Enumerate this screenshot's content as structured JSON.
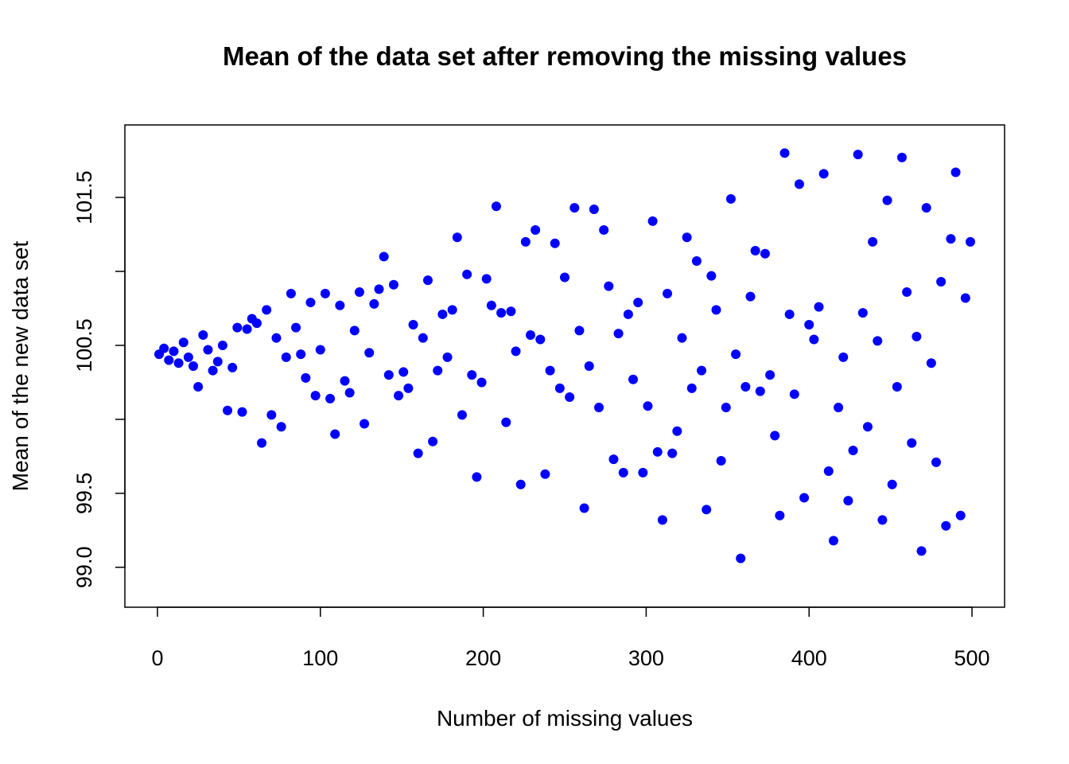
{
  "chart_data": {
    "type": "scatter",
    "title": "Mean of the data set after removing the missing values",
    "x_label": "Number of missing values",
    "y_label": "Mean of the new data set",
    "color": "#0000ff",
    "xlim": [
      -20,
      520
    ],
    "xticks": [
      0,
      100,
      200,
      300,
      400,
      500
    ],
    "ylim": [
      98.73,
      101.99
    ],
    "yticks": [
      {
        "value": 99,
        "label": "99.0"
      },
      {
        "value": 99.5,
        "label": "99.5"
      },
      {
        "value": 100,
        "label": null
      },
      {
        "value": 100.5,
        "label": "100.5"
      },
      {
        "value": 101,
        "label": null
      },
      {
        "value": 101.5,
        "label": "101.5"
      }
    ],
    "x": [
      1,
      4,
      7,
      10,
      13,
      16,
      19,
      22,
      25,
      28,
      31,
      34,
      37,
      40,
      43,
      46,
      49,
      52,
      55,
      58,
      61,
      64,
      67,
      70,
      73,
      76,
      79,
      82,
      85,
      88,
      91,
      94,
      97,
      100,
      103,
      106,
      109,
      112,
      115,
      118,
      121,
      124,
      127,
      130,
      133,
      136,
      139,
      142,
      145,
      148,
      151,
      154,
      157,
      160,
      163,
      166,
      169,
      172,
      175,
      178,
      181,
      184,
      187,
      190,
      193,
      196,
      199,
      202,
      205,
      208,
      211,
      214,
      217,
      220,
      223,
      226,
      229,
      232,
      235,
      238,
      241,
      244,
      247,
      250,
      253,
      256,
      259,
      262,
      265,
      268,
      271,
      274,
      277,
      280,
      283,
      286,
      289,
      292,
      295,
      298,
      301,
      304,
      307,
      310,
      313,
      316,
      319,
      322,
      325,
      328,
      331,
      334,
      337,
      340,
      343,
      346,
      349,
      352,
      355,
      358,
      361,
      364,
      367,
      370,
      373,
      376,
      379,
      382,
      385,
      388,
      391,
      394,
      397,
      400,
      403,
      406,
      409,
      412,
      415,
      418,
      421,
      424,
      427,
      430,
      433,
      436,
      439,
      442,
      445,
      448,
      451,
      454,
      457,
      460,
      463,
      466,
      469,
      472,
      475,
      478,
      481,
      484,
      487,
      490,
      493,
      496,
      499
    ],
    "y": [
      100.44,
      100.48,
      100.4,
      100.46,
      100.38,
      100.52,
      100.42,
      100.36,
      100.22,
      100.57,
      100.47,
      100.33,
      100.39,
      100.5,
      100.06,
      100.35,
      100.62,
      100.05,
      100.61,
      100.68,
      100.65,
      99.84,
      100.74,
      100.03,
      100.55,
      99.95,
      100.42,
      100.85,
      100.62,
      100.44,
      100.28,
      100.79,
      100.16,
      100.47,
      100.85,
      100.14,
      99.9,
      100.77,
      100.26,
      100.18,
      100.6,
      100.86,
      99.97,
      100.45,
      100.78,
      100.88,
      101.1,
      100.3,
      100.91,
      100.16,
      100.32,
      100.21,
      100.64,
      99.77,
      100.55,
      100.94,
      99.85,
      100.33,
      100.71,
      100.42,
      100.74,
      101.23,
      100.03,
      100.98,
      100.3,
      99.61,
      100.25,
      100.95,
      100.77,
      101.44,
      100.72,
      99.98,
      100.73,
      100.46,
      99.56,
      101.2,
      100.57,
      101.28,
      100.54,
      99.63,
      100.33,
      101.19,
      100.21,
      100.96,
      100.15,
      101.43,
      100.6,
      99.4,
      100.36,
      101.42,
      100.08,
      101.28,
      100.9,
      99.73,
      100.58,
      99.64,
      100.71,
      100.27,
      100.79,
      99.64,
      100.09,
      101.34,
      99.78,
      99.32,
      100.85,
      99.77,
      99.92,
      100.55,
      101.23,
      100.21,
      101.07,
      100.33,
      99.39,
      100.97,
      100.74,
      99.72,
      100.08,
      101.49,
      100.44,
      99.06,
      100.22,
      100.83,
      101.14,
      100.19,
      101.12,
      100.3,
      99.89,
      99.35,
      101.8,
      100.71,
      100.17,
      101.59,
      99.47,
      100.64,
      100.54,
      100.76,
      101.66,
      99.65,
      99.18,
      100.08,
      100.42,
      99.45,
      99.79,
      101.79,
      100.72,
      99.95,
      101.2,
      100.53,
      99.32,
      101.48,
      99.56,
      100.22,
      101.77,
      100.86,
      99.84,
      100.56,
      99.11,
      101.43,
      100.38,
      99.71,
      100.93,
      99.28,
      101.22,
      101.67,
      99.35,
      100.82,
      101.2
    ]
  }
}
